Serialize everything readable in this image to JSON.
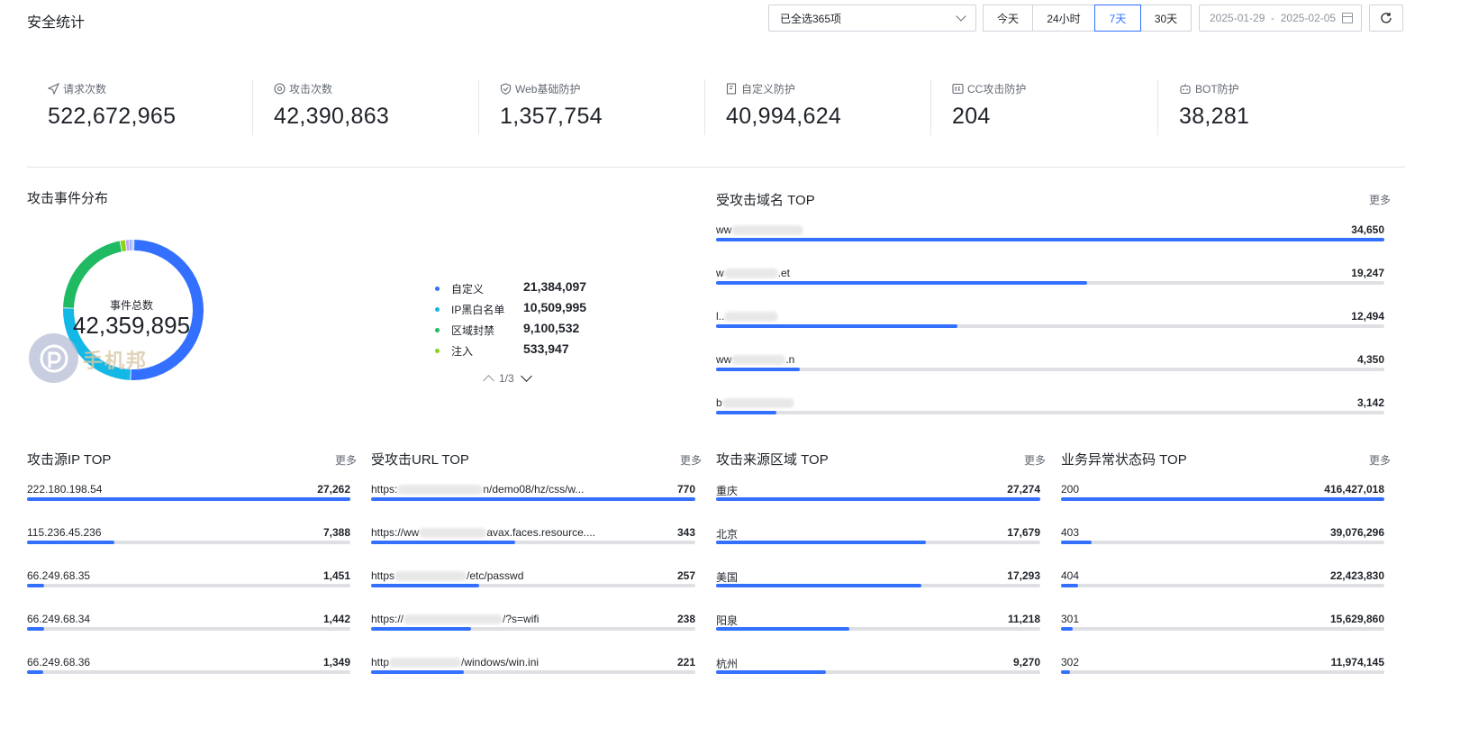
{
  "header": {
    "title": "安全统计",
    "selector_value": "已全选365项",
    "range_tabs": [
      {
        "label": "今天",
        "active": false
      },
      {
        "label": "24小时",
        "active": false
      },
      {
        "label": "7天",
        "active": true
      },
      {
        "label": "30天",
        "active": false
      }
    ],
    "date_range": "2025-01-29  -  2025-02-05"
  },
  "stats": [
    {
      "label": "请求次数",
      "value": "522,672,965",
      "icon": "send-icon"
    },
    {
      "label": "攻击次数",
      "value": "42,390,863",
      "icon": "target-icon"
    },
    {
      "label": "Web基础防护",
      "value": "1,357,754",
      "icon": "shield-check-icon"
    },
    {
      "label": "自定义防护",
      "value": "40,994,624",
      "icon": "doc-shield-icon"
    },
    {
      "label": "CC攻击防护",
      "value": "204",
      "icon": "cc-shield-icon"
    },
    {
      "label": "BOT防护",
      "value": "38,281",
      "icon": "bot-icon"
    }
  ],
  "attack_dist": {
    "title": "攻击事件分布",
    "center_label": "事件总数",
    "center_value": "42,359,895",
    "pager": "1/3",
    "legend": [
      {
        "name": "自定义",
        "value": "21,384,097",
        "color": "#3370ff"
      },
      {
        "name": "IP黑白名单",
        "value": "10,509,995",
        "color": "#14b8e6"
      },
      {
        "name": "区域封禁",
        "value": "9,100,532",
        "color": "#1fba61"
      },
      {
        "name": "注入",
        "value": "533,947",
        "color": "#8cd41a"
      },
      {
        "name": "",
        "value": "",
        "color": "#b38cf0"
      }
    ]
  },
  "chart_data": {
    "type": "pie",
    "title": "攻击事件分布",
    "series": [
      {
        "name": "自定义",
        "value": 21384097,
        "color": "#3370ff"
      },
      {
        "name": "IP黑白名单",
        "value": 10509995,
        "color": "#14b8e6"
      },
      {
        "name": "区域封禁",
        "value": 9100532,
        "color": "#1fba61"
      },
      {
        "name": "注入",
        "value": 533947,
        "color": "#8cd41a"
      },
      {
        "name": "",
        "value": 380000,
        "color": "#c9a6f5"
      },
      {
        "name": "",
        "value": 230000,
        "color": "#7b9bff"
      },
      {
        "name": "",
        "value": 221324,
        "color": "#a8c0ff"
      }
    ]
  },
  "watermark_text": "手机邦",
  "domains": {
    "title": "受攻击域名 TOP",
    "more": "更多",
    "max": 34650,
    "items": [
      {
        "name": "ww",
        "value": "34,650",
        "n": 34650,
        "blur": 80
      },
      {
        "name": "w",
        "suffix": ".et",
        "value": "19,247",
        "n": 19247,
        "blur": 60
      },
      {
        "name": "l..",
        "value": "12,494",
        "n": 12494,
        "blur": 60
      },
      {
        "name": "ww",
        "suffix": ".n",
        "value": "4,350",
        "n": 4350,
        "blur": 60
      },
      {
        "name": "b",
        "value": "3,142",
        "n": 3142,
        "blur": 80
      }
    ]
  },
  "src_ip": {
    "title": "攻击源IP TOP",
    "more": "更多",
    "max": 27262,
    "items": [
      {
        "name": "222.180.198.54",
        "value": "27,262",
        "n": 27262
      },
      {
        "name": "115.236.45.236",
        "value": "7,388",
        "n": 7388
      },
      {
        "name": "66.249.68.35",
        "value": "1,451",
        "n": 1451
      },
      {
        "name": "66.249.68.34",
        "value": "1,442",
        "n": 1442
      },
      {
        "name": "66.249.68.36",
        "value": "1,349",
        "n": 1349
      }
    ]
  },
  "urls": {
    "title": "受攻击URL TOP",
    "more": "更多",
    "max": 770,
    "items": [
      {
        "name": "https:",
        "suffix": "n/demo08/hz/css/w...",
        "value": "770",
        "n": 770,
        "blur": 95
      },
      {
        "name": "https://ww",
        "suffix": "avax.faces.resource....",
        "value": "343",
        "n": 343,
        "blur": 75
      },
      {
        "name": "https",
        "suffix": "/etc/passwd",
        "value": "257",
        "n": 257,
        "blur": 80
      },
      {
        "name": "https://",
        "suffix": "/?s=wifi",
        "value": "238",
        "n": 238,
        "blur": 110
      },
      {
        "name": "http",
        "suffix": "/windows/win.ini",
        "value": "221",
        "n": 221,
        "blur": 80
      }
    ]
  },
  "regions": {
    "title": "攻击来源区域 TOP",
    "more": "更多",
    "max": 27274,
    "items": [
      {
        "name": "重庆",
        "value": "27,274",
        "n": 27274
      },
      {
        "name": "北京",
        "value": "17,679",
        "n": 17679
      },
      {
        "name": "美国",
        "value": "17,293",
        "n": 17293
      },
      {
        "name": "阳泉",
        "value": "11,218",
        "n": 11218
      },
      {
        "name": "杭州",
        "value": "9,270",
        "n": 9270
      }
    ]
  },
  "status_codes": {
    "title": "业务异常状态码 TOP",
    "more": "更多",
    "max": 416427018,
    "items": [
      {
        "name": "200",
        "value": "416,427,018",
        "n": 416427018
      },
      {
        "name": "403",
        "value": "39,076,296",
        "n": 39076296
      },
      {
        "name": "404",
        "value": "22,423,830",
        "n": 22423830
      },
      {
        "name": "301",
        "value": "15,629,860",
        "n": 15629860
      },
      {
        "name": "302",
        "value": "11,974,145",
        "n": 11974145
      }
    ]
  }
}
